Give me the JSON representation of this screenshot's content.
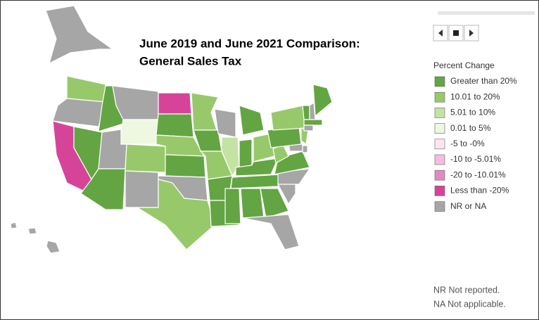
{
  "title": [
    "June 2019 and June 2021 Comparison:",
    "General Sales Tax"
  ],
  "legend": {
    "title": "Percent Change",
    "items": [
      {
        "label": "Greater than 20%",
        "color": "#63a543"
      },
      {
        "label": "10.01 to 20%",
        "color": "#97c96a"
      },
      {
        "label": "5.01 to 10%",
        "color": "#c4e3a3"
      },
      {
        "label": "0.01 to 5%",
        "color": "#eef7e0"
      },
      {
        "label": "-5 to -0%",
        "color": "#fde4f0"
      },
      {
        "label": "-10 to -5.01%",
        "color": "#f5bcdd"
      },
      {
        "label": "-20 to -10.01%",
        "color": "#e08ac2"
      },
      {
        "label": "Less than -20%",
        "color": "#d6449a"
      },
      {
        "label": "NR or NA",
        "color": "#a6a6a6"
      }
    ]
  },
  "notes": [
    "NR Not reported.",
    "NA Not applicable."
  ]
}
